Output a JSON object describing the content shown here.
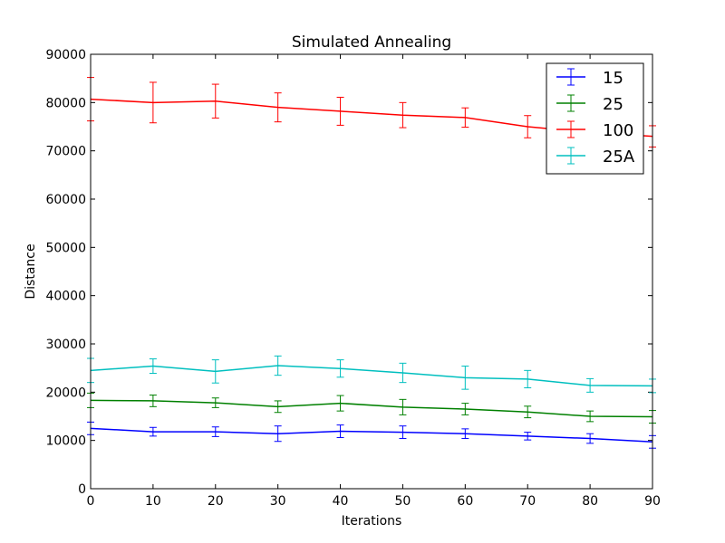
{
  "chart_data": {
    "type": "line",
    "title": "Simulated Annealing",
    "xlabel": "Iterations",
    "ylabel": "Distance",
    "xlim": [
      0,
      90
    ],
    "ylim": [
      0,
      90000
    ],
    "xticks": [
      0,
      10,
      20,
      30,
      40,
      50,
      60,
      70,
      80,
      90
    ],
    "yticks": [
      0,
      10000,
      20000,
      30000,
      40000,
      50000,
      60000,
      70000,
      80000,
      90000
    ],
    "x": [
      0,
      10,
      20,
      30,
      40,
      50,
      60,
      70,
      80,
      90
    ],
    "grid": false,
    "legend": "top-right",
    "series": [
      {
        "name": "15",
        "color": "#0000ff",
        "values": [
          12500,
          11800,
          11800,
          11400,
          11900,
          11700,
          11400,
          10900,
          10400,
          9700
        ],
        "errors": [
          1300,
          900,
          1000,
          1600,
          1300,
          1300,
          1000,
          800,
          1000,
          1300
        ]
      },
      {
        "name": "25",
        "color": "#008000",
        "values": [
          18300,
          18200,
          17800,
          17000,
          17700,
          16900,
          16500,
          15900,
          15000,
          14900
        ],
        "errors": [
          1500,
          1200,
          1000,
          1200,
          1600,
          1600,
          1200,
          1200,
          1100,
          1300
        ]
      },
      {
        "name": "100",
        "color": "#ff0000",
        "values": [
          80700,
          80000,
          80300,
          79000,
          78200,
          77400,
          76900,
          75000,
          73800,
          73000
        ],
        "errors": [
          4500,
          4200,
          3500,
          3000,
          2900,
          2600,
          2000,
          2300,
          2200,
          2200
        ]
      },
      {
        "name": "25A",
        "color": "#00bfbf",
        "values": [
          24500,
          25400,
          24300,
          25500,
          24900,
          24000,
          23000,
          22700,
          21400,
          21300
        ],
        "errors": [
          2500,
          1500,
          2400,
          2000,
          1800,
          2000,
          2400,
          1800,
          1400,
          1400
        ]
      }
    ]
  }
}
